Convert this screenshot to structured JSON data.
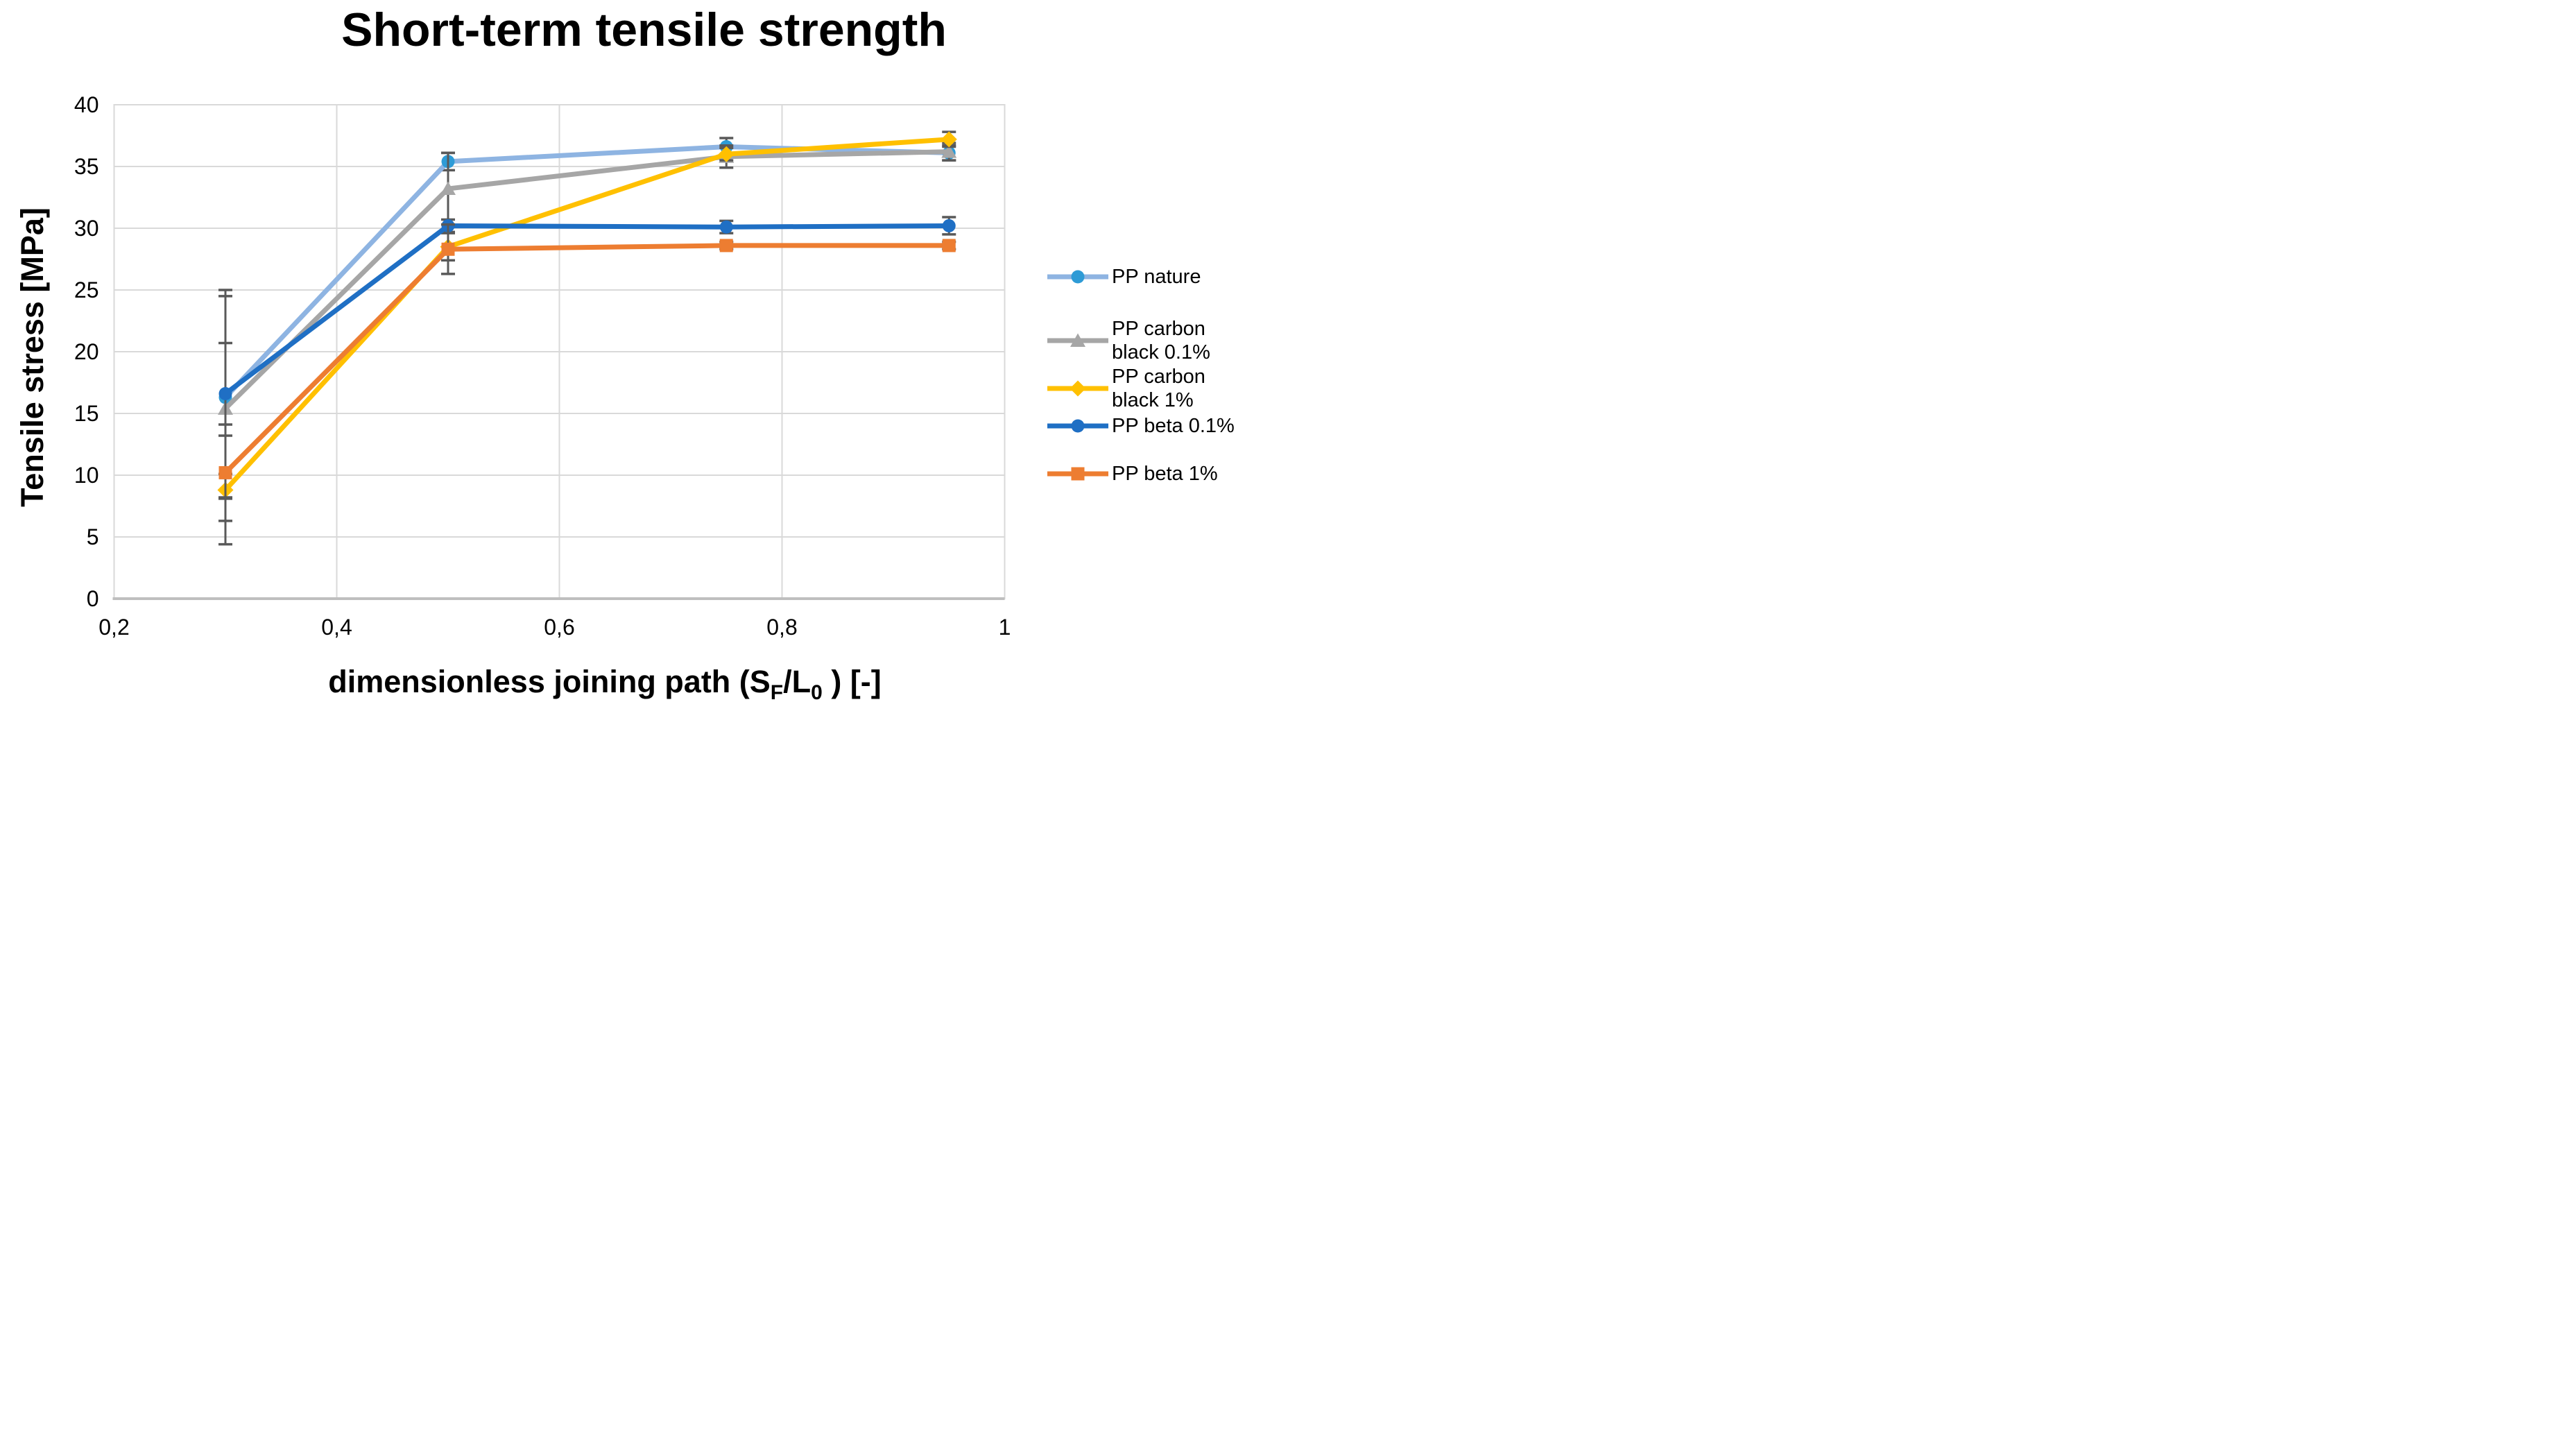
{
  "chart_data": {
    "type": "line",
    "title": "Short-term tensile strength",
    "grid": true,
    "legend_position": "right",
    "y_axis": {
      "title": "Tensile stress [MPa]",
      "min": 0,
      "max": 40,
      "step": 5,
      "tick_labels": [
        "0",
        "5",
        "10",
        "15",
        "20",
        "25",
        "30",
        "35",
        "40"
      ]
    },
    "x_axis": {
      "title_parts": [
        "dimensionless joining path (S",
        "F",
        "/L",
        "0",
        " ) [-]"
      ],
      "min": 0.2,
      "max": 1.0,
      "ticks": [
        {
          "label": "0,2",
          "value": 0.2
        },
        {
          "label": "0,4",
          "value": 0.4
        },
        {
          "label": "0,6",
          "value": 0.6
        },
        {
          "label": "0,8",
          "value": 0.8
        },
        {
          "label": "1",
          "value": 1.0
        }
      ]
    },
    "x_values": [
      0.3,
      0.5,
      0.75,
      0.95
    ],
    "series": [
      {
        "name": "PP nature",
        "marker": "circle",
        "line_color": "#8EB4E2",
        "marker_color": "#2E9BD6",
        "values": [
          16.3,
          35.4,
          36.6,
          36.1
        ],
        "errors": [
          8.2,
          0.7,
          0.7,
          0.6
        ]
      },
      {
        "name": "PP carbon black 0.1%",
        "marker": "triangle",
        "line_color": "#A6A6A6",
        "marker_color": "#A6A6A6",
        "values": [
          15.4,
          33.2,
          35.8,
          36.2
        ],
        "errors": [
          5.3,
          2.9,
          0.9,
          0.7
        ]
      },
      {
        "name": "PP carbon black 1%",
        "marker": "diamond",
        "line_color": "#FFC000",
        "marker_color": "#FFC000",
        "values": [
          8.8,
          28.5,
          36.0,
          37.2
        ],
        "errors": [
          4.4,
          1.1,
          0.5,
          0.6
        ]
      },
      {
        "name": "PP beta 0.1%",
        "marker": "circle",
        "line_color": "#1F6FC4",
        "marker_color": "#1F6FC4",
        "values": [
          16.6,
          30.2,
          30.1,
          30.2
        ],
        "errors": [
          8.4,
          0.5,
          0.5,
          0.7
        ]
      },
      {
        "name": "PP beta 1%",
        "marker": "square",
        "line_color": "#ED7D31",
        "marker_color": "#ED7D31",
        "values": [
          10.2,
          28.3,
          28.6,
          28.6
        ],
        "errors": [
          3.9,
          2.0,
          0.3,
          0.3
        ]
      }
    ],
    "colors": {
      "error_bar": "#595959",
      "gridline": "#D9D9D9",
      "axis_line": "#BFBFBF",
      "background": "#FFFFFF",
      "text": "#000000"
    }
  }
}
